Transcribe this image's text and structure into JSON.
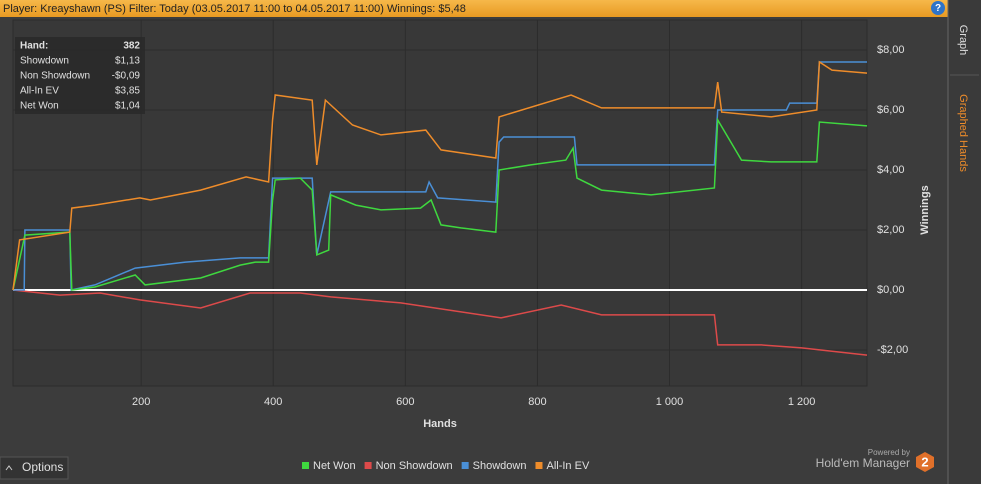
{
  "header": {
    "title": "Player: Kreayshawn (PS) Filter: Today (03.05.2017 11:00 to 04.05.2017 11:00) Winnings: $5,48",
    "help": "?"
  },
  "tabs": [
    "Graph",
    "Graphed Hands"
  ],
  "stats": {
    "rows": [
      [
        "Hand:",
        "382"
      ],
      [
        "Showdown",
        "$1,13"
      ],
      [
        "Non Showdown",
        "-$0,09"
      ],
      [
        "All-In EV",
        "$3,85"
      ],
      [
        "Net Won",
        "$1,04"
      ]
    ]
  },
  "footer": {
    "options": "Options",
    "powered_by": "Powered by",
    "product": "Hold'em Manager",
    "logo": "2"
  },
  "chart_data": {
    "type": "line",
    "xlabel": "Hands",
    "ylabel": "Winnings",
    "grid": true,
    "xlim": [
      6,
      1299
    ],
    "xticks": [
      200,
      400,
      600,
      800,
      {
        "value": 1000,
        "label": "1 000"
      },
      {
        "value": 1200,
        "label": "1 200"
      }
    ],
    "ylim": [
      -3.2,
      9.0
    ],
    "yticks": [
      {
        "value": -2,
        "label": "-$2,00"
      },
      {
        "value": 0,
        "label": "$0,00"
      },
      {
        "value": 2,
        "label": "$2,00"
      },
      {
        "value": 4,
        "label": "$4,00"
      },
      {
        "value": 6,
        "label": "$6,00"
      },
      {
        "value": 8,
        "label": "$8,00"
      }
    ],
    "series": [
      {
        "name": "Net Won",
        "color": "#3fd83f",
        "x": [
          6,
          24,
          92,
          95,
          130,
          191,
          206,
          290,
          350,
          373,
          393,
          399,
          403,
          441,
          459,
          466,
          484,
          487,
          525,
          563,
          623,
          639,
          654,
          684,
          737,
          742,
          790,
          843,
          854,
          860,
          897,
          972,
          1068,
          1073,
          1109,
          1154,
          1223,
          1227,
          1299
        ],
        "values": [
          0,
          1.83,
          1.93,
          0,
          0.1,
          0.5,
          0.17,
          0.4,
          0.83,
          0.93,
          0.93,
          3.0,
          3.67,
          3.73,
          3.33,
          1.17,
          1.33,
          3.17,
          2.83,
          2.67,
          2.73,
          3.0,
          2.17,
          2.07,
          1.93,
          4.0,
          4.17,
          4.33,
          4.73,
          3.73,
          3.33,
          3.17,
          3.4,
          5.67,
          4.33,
          4.27,
          4.27,
          5.6,
          5.47
        ]
      },
      {
        "name": "Non Showdown",
        "color": "#dd4a4a",
        "x": [
          6,
          77,
          138,
          198,
          290,
          365,
          441,
          487,
          593,
          745,
          836,
          897,
          1068,
          1073,
          1139,
          1200,
          1299
        ],
        "values": [
          0,
          -0.17,
          -0.1,
          -0.33,
          -0.6,
          -0.1,
          -0.1,
          -0.23,
          -0.43,
          -0.93,
          -0.5,
          -0.83,
          -0.83,
          -1.83,
          -1.83,
          -1.93,
          -2.17
        ]
      },
      {
        "name": "Showdown",
        "color": "#4a8fd6",
        "x": [
          6,
          23,
          24,
          92,
          94,
          130,
          191,
          267,
          350,
          393,
          399,
          459,
          466,
          487,
          631,
          636,
          649,
          737,
          742,
          749,
          856,
          860,
          1068,
          1073,
          1177,
          1182,
          1223,
          1227,
          1299
        ],
        "values": [
          0,
          0,
          2.0,
          2.0,
          0,
          0.17,
          0.73,
          0.93,
          1.07,
          1.07,
          3.73,
          3.73,
          1.17,
          3.27,
          3.27,
          3.6,
          3.07,
          2.93,
          4.93,
          5.1,
          5.1,
          4.17,
          4.17,
          6.0,
          6.0,
          6.23,
          6.23,
          7.6,
          7.6
        ]
      },
      {
        "name": "All-In EV",
        "color": "#ee8c2a",
        "x": [
          6,
          16,
          92,
          95,
          130,
          198,
          214,
          290,
          359,
          393,
          399,
          403,
          459,
          466,
          479,
          520,
          563,
          631,
          654,
          737,
          742,
          851,
          897,
          1068,
          1073,
          1079,
          1154,
          1223,
          1227,
          1246,
          1299
        ],
        "values": [
          0,
          1.67,
          1.93,
          2.73,
          2.83,
          3.07,
          3.0,
          3.33,
          3.77,
          3.6,
          5.67,
          6.5,
          6.33,
          4.17,
          6.33,
          5.5,
          5.17,
          5.33,
          4.67,
          4.4,
          5.77,
          6.5,
          6.07,
          6.07,
          6.93,
          5.93,
          5.77,
          6.0,
          7.6,
          7.33,
          7.23
        ]
      }
    ]
  }
}
